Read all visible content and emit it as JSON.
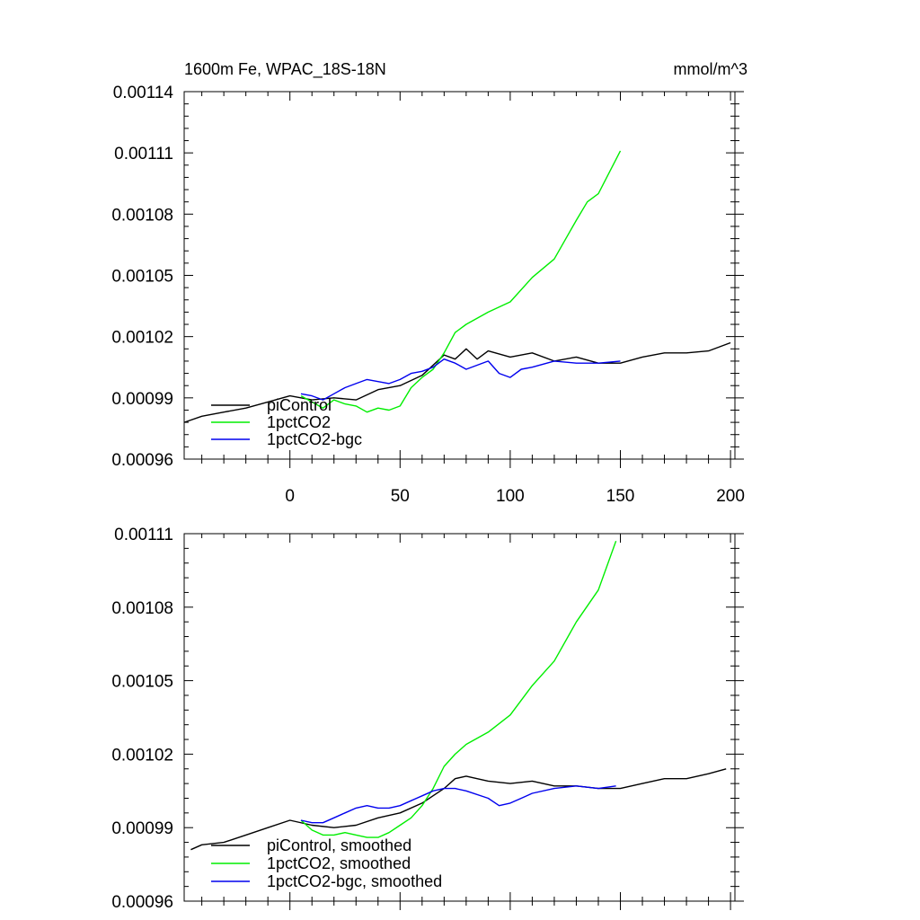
{
  "chart_data": [
    {
      "type": "line",
      "title": "1600m Fe, WPAC_18S-18N",
      "units": "mmol/m^3",
      "xlabel": "",
      "ylabel": "",
      "xlim": [
        -48,
        202
      ],
      "ylim": [
        0.00096,
        0.00114
      ],
      "x_ticks": [
        0,
        50,
        100,
        150,
        200
      ],
      "x_tick_labels": [
        "0",
        "50",
        "100",
        "150",
        "200"
      ],
      "y_ticks": [
        0.00096,
        0.00099,
        0.00102,
        0.00105,
        0.00108,
        0.00111,
        0.00114
      ],
      "y_tick_labels": [
        "0.00096",
        "0.00099",
        "0.00102",
        "0.00105",
        "0.00108",
        "0.00111",
        "0.00114"
      ],
      "grid": false,
      "legend_position": "bottom-left",
      "series": [
        {
          "name": "piControl",
          "color": "#000000",
          "x": [
            -48,
            -40,
            -30,
            -20,
            -10,
            0,
            10,
            20,
            30,
            40,
            50,
            60,
            70,
            75,
            80,
            85,
            90,
            100,
            110,
            120,
            130,
            140,
            150,
            160,
            170,
            180,
            190,
            200
          ],
          "y": [
            0.000978,
            0.000981,
            0.000983,
            0.000985,
            0.000988,
            0.000991,
            0.000989,
            0.00099,
            0.000989,
            0.000994,
            0.000996,
            0.001001,
            0.001011,
            0.001009,
            0.001014,
            0.001009,
            0.001013,
            0.00101,
            0.001012,
            0.001008,
            0.00101,
            0.001007,
            0.001007,
            0.00101,
            0.001012,
            0.001012,
            0.001013,
            0.001017
          ]
        },
        {
          "name": "1pctCO2",
          "color": "#00ee00",
          "x": [
            5,
            10,
            15,
            20,
            25,
            30,
            35,
            40,
            45,
            50,
            55,
            60,
            65,
            70,
            75,
            80,
            90,
            100,
            110,
            120,
            130,
            135,
            140,
            150
          ],
          "y": [
            0.000991,
            0.000988,
            0.000985,
            0.000989,
            0.000987,
            0.000986,
            0.000983,
            0.000985,
            0.000984,
            0.000986,
            0.000995,
            0.001,
            0.001004,
            0.001012,
            0.001022,
            0.001026,
            0.001032,
            0.001037,
            0.001049,
            0.001058,
            0.001077,
            0.001086,
            0.00109,
            0.001111
          ]
        },
        {
          "name": "1pctCO2-bgc",
          "color": "#0000ee",
          "x": [
            5,
            10,
            15,
            20,
            25,
            30,
            35,
            40,
            45,
            50,
            55,
            60,
            65,
            70,
            75,
            80,
            90,
            95,
            100,
            105,
            110,
            120,
            130,
            140,
            150
          ],
          "y": [
            0.000992,
            0.000991,
            0.000989,
            0.000992,
            0.000995,
            0.000997,
            0.000999,
            0.000998,
            0.000997,
            0.000999,
            0.001002,
            0.001003,
            0.001005,
            0.001009,
            0.001007,
            0.001004,
            0.001008,
            0.001002,
            0.001,
            0.001004,
            0.001005,
            0.001008,
            0.001007,
            0.001007,
            0.001008
          ]
        }
      ]
    },
    {
      "type": "line",
      "title": "",
      "xlabel": "",
      "ylabel": "",
      "xlim": [
        -48,
        202
      ],
      "ylim": [
        0.00096,
        0.00111
      ],
      "x_ticks": [
        0,
        50,
        100,
        150,
        200
      ],
      "x_tick_labels": [],
      "y_ticks": [
        0.00096,
        0.00099,
        0.00102,
        0.00105,
        0.00108,
        0.00111
      ],
      "y_tick_labels": [
        "0.00096",
        "0.00099",
        "0.00102",
        "0.00105",
        "0.00108",
        "0.00111"
      ],
      "grid": false,
      "legend_position": "bottom-left",
      "series": [
        {
          "name": "piControl, smoothed",
          "color": "#000000",
          "x": [
            -45,
            -40,
            -30,
            -20,
            -10,
            0,
            10,
            20,
            30,
            40,
            50,
            60,
            70,
            75,
            80,
            85,
            90,
            100,
            110,
            120,
            130,
            140,
            150,
            160,
            170,
            180,
            190,
            198
          ],
          "y": [
            0.000981,
            0.000983,
            0.000984,
            0.000987,
            0.00099,
            0.000993,
            0.000991,
            0.00099,
            0.000991,
            0.000994,
            0.000996,
            0.001,
            0.001006,
            0.00101,
            0.001011,
            0.00101,
            0.001009,
            0.001008,
            0.001009,
            0.001007,
            0.001007,
            0.001006,
            0.001006,
            0.001008,
            0.00101,
            0.00101,
            0.001012,
            0.001014
          ]
        },
        {
          "name": "1pctCO2, smoothed",
          "color": "#00ee00",
          "x": [
            5,
            10,
            15,
            20,
            25,
            30,
            35,
            40,
            45,
            50,
            55,
            60,
            65,
            70,
            75,
            80,
            90,
            100,
            110,
            120,
            130,
            140,
            148
          ],
          "y": [
            0.000993,
            0.000989,
            0.000987,
            0.000987,
            0.000988,
            0.000987,
            0.000986,
            0.000986,
            0.000988,
            0.000991,
            0.000994,
            0.000999,
            0.001006,
            0.001015,
            0.00102,
            0.001024,
            0.001029,
            0.001036,
            0.001048,
            0.001058,
            0.001074,
            0.001087,
            0.001107
          ]
        },
        {
          "name": "1pctCO2-bgc, smoothed",
          "color": "#0000ee",
          "x": [
            5,
            10,
            15,
            20,
            25,
            30,
            35,
            40,
            45,
            50,
            55,
            60,
            65,
            70,
            75,
            80,
            90,
            95,
            100,
            105,
            110,
            120,
            130,
            140,
            148
          ],
          "y": [
            0.000993,
            0.000992,
            0.000992,
            0.000994,
            0.000996,
            0.000998,
            0.000999,
            0.000998,
            0.000998,
            0.000999,
            0.001001,
            0.001003,
            0.001005,
            0.001006,
            0.001006,
            0.001005,
            0.001002,
            0.000999,
            0.001,
            0.001002,
            0.001004,
            0.001006,
            0.001007,
            0.001006,
            0.001007
          ]
        }
      ]
    }
  ]
}
